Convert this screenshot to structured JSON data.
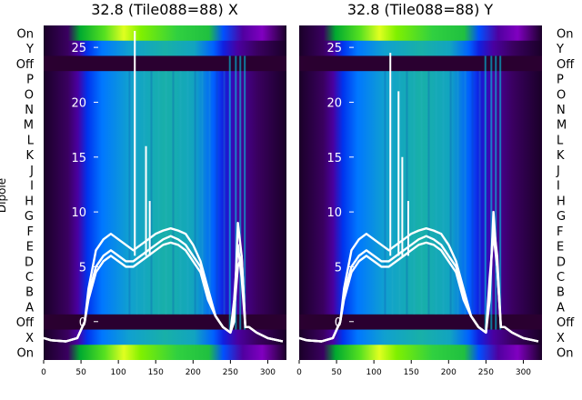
{
  "chart_data": [
    {
      "type": "heatmap",
      "title": "32.8 (Tile088=88) X",
      "ylabel": "Dipole",
      "x_ticks": [
        "0",
        "50",
        "100",
        "150",
        "200",
        "250",
        "300"
      ],
      "xlim": [
        0,
        325
      ],
      "y_overlay_ticks": [
        "0",
        "5",
        "10",
        "15",
        "20",
        "25"
      ],
      "ylim_overlay": [
        -3.5,
        27
      ],
      "dipole_labels": [
        "On",
        "Y",
        "Off",
        "P",
        "O",
        "N",
        "M",
        "L",
        "K",
        "J",
        "I",
        "H",
        "G",
        "F",
        "E",
        "D",
        "C",
        "B",
        "A",
        "Off",
        "X",
        "On"
      ],
      "series": [
        {
          "x": [
            0,
            10,
            30,
            45,
            55,
            60,
            70,
            80,
            90,
            100,
            110,
            120,
            130,
            140,
            150,
            160,
            170,
            180,
            190,
            200,
            210,
            220,
            230,
            240,
            250,
            255,
            260,
            265,
            270,
            275,
            285,
            300,
            320
          ],
          "y": [
            -1.5,
            -1.7,
            -1.8,
            -1.5,
            0,
            2.5,
            5,
            6,
            6.5,
            6,
            5.5,
            5.5,
            6,
            6.5,
            7,
            7.5,
            7.8,
            7.5,
            7,
            6,
            5,
            2.5,
            0.5,
            -0.5,
            -1,
            1,
            5,
            6,
            -0.5,
            -0.5,
            -1,
            -1.5,
            -1.8
          ]
        },
        {
          "x": [
            0,
            10,
            30,
            45,
            55,
            60,
            70,
            80,
            90,
            100,
            110,
            120,
            130,
            140,
            150,
            160,
            170,
            180,
            190,
            200,
            210,
            220,
            230,
            240,
            250,
            255,
            260,
            265,
            270,
            275,
            285,
            300,
            320
          ],
          "y": [
            -1.5,
            -1.7,
            -1.8,
            -1.5,
            0,
            3,
            6.5,
            7.5,
            8,
            7.5,
            7,
            6.5,
            7,
            7.5,
            8,
            8.3,
            8.5,
            8.3,
            8,
            7,
            5.5,
            3,
            0.5,
            -0.5,
            -1,
            2,
            7,
            4,
            -0.5,
            -0.5,
            -1,
            -1.5,
            -1.8
          ]
        },
        {
          "x": [
            0,
            10,
            30,
            45,
            55,
            60,
            70,
            80,
            90,
            100,
            110,
            120,
            130,
            140,
            150,
            160,
            170,
            180,
            190,
            200,
            210,
            220,
            230,
            240,
            250,
            255,
            260,
            265,
            270,
            275,
            285,
            300,
            320
          ],
          "y": [
            -1.5,
            -1.7,
            -1.8,
            -1.5,
            0,
            2,
            4.5,
            5.5,
            6,
            5.5,
            5,
            5,
            5.5,
            6,
            6.5,
            7,
            7.2,
            7,
            6.5,
            5.5,
            4.5,
            2,
            0.5,
            -0.5,
            -1,
            0,
            9,
            6,
            -0.5,
            -0.5,
            -1,
            -1.5,
            -1.8
          ]
        }
      ],
      "spikes": [
        {
          "x": 122,
          "y": 26.5
        },
        {
          "x": 137,
          "y": 16
        },
        {
          "x": 142,
          "y": 11
        }
      ]
    },
    {
      "type": "heatmap",
      "title": "32.8 (Tile088=88) Y",
      "ylabel": "",
      "x_ticks": [
        "0",
        "50",
        "100",
        "150",
        "200",
        "250",
        "300"
      ],
      "xlim": [
        0,
        325
      ],
      "y_overlay_ticks": [
        "0",
        "5",
        "10",
        "15",
        "20",
        "25"
      ],
      "ylim_overlay": [
        -3.5,
        27
      ],
      "dipole_labels": [
        "On",
        "Y",
        "Off",
        "P",
        "O",
        "N",
        "M",
        "L",
        "K",
        "J",
        "I",
        "H",
        "G",
        "F",
        "E",
        "D",
        "C",
        "B",
        "A",
        "Off",
        "X",
        "On"
      ],
      "series": [
        {
          "x": [
            0,
            10,
            30,
            45,
            55,
            60,
            70,
            80,
            90,
            100,
            110,
            120,
            130,
            140,
            150,
            160,
            170,
            180,
            190,
            200,
            210,
            220,
            230,
            240,
            250,
            255,
            260,
            265,
            270,
            275,
            285,
            300,
            320
          ],
          "y": [
            -1.5,
            -1.7,
            -1.8,
            -1.5,
            0,
            2.5,
            5,
            6,
            6.5,
            6,
            5.5,
            5.5,
            6,
            6.5,
            7,
            7.5,
            7.8,
            7.5,
            7,
            6,
            5,
            2.5,
            0.5,
            -0.5,
            -1,
            4,
            8,
            5,
            -0.5,
            -0.5,
            -1,
            -1.5,
            -1.8
          ]
        },
        {
          "x": [
            0,
            10,
            30,
            45,
            55,
            60,
            70,
            80,
            90,
            100,
            110,
            120,
            130,
            140,
            150,
            160,
            170,
            180,
            190,
            200,
            210,
            220,
            230,
            240,
            250,
            255,
            260,
            265,
            270,
            275,
            285,
            300,
            320
          ],
          "y": [
            -1.5,
            -1.7,
            -1.8,
            -1.5,
            0,
            3,
            6.5,
            7.5,
            8,
            7.5,
            7,
            6.5,
            7,
            7.5,
            8,
            8.3,
            8.5,
            8.3,
            8,
            7,
            5.5,
            3,
            0.5,
            -0.5,
            -1,
            3,
            9,
            6,
            -0.5,
            -0.5,
            -1,
            -1.5,
            -1.8
          ]
        },
        {
          "x": [
            0,
            10,
            30,
            45,
            55,
            60,
            70,
            80,
            90,
            100,
            110,
            120,
            130,
            140,
            150,
            160,
            170,
            180,
            190,
            200,
            210,
            220,
            230,
            240,
            250,
            255,
            260,
            265,
            270,
            275,
            285,
            300,
            320
          ],
          "y": [
            -1.5,
            -1.7,
            -1.8,
            -1.5,
            0,
            2,
            4.5,
            5.5,
            6,
            5.5,
            5,
            5,
            5.5,
            6,
            6.5,
            7,
            7.2,
            7,
            6.5,
            5.5,
            4.5,
            2,
            0.5,
            -0.5,
            -1,
            2,
            10,
            5,
            -0.5,
            -0.5,
            -1,
            -1.5,
            -1.8
          ]
        }
      ],
      "spikes": [
        {
          "x": 122,
          "y": 24.5
        },
        {
          "x": 133,
          "y": 21
        },
        {
          "x": 138,
          "y": 15
        },
        {
          "x": 146,
          "y": 11
        }
      ]
    }
  ]
}
